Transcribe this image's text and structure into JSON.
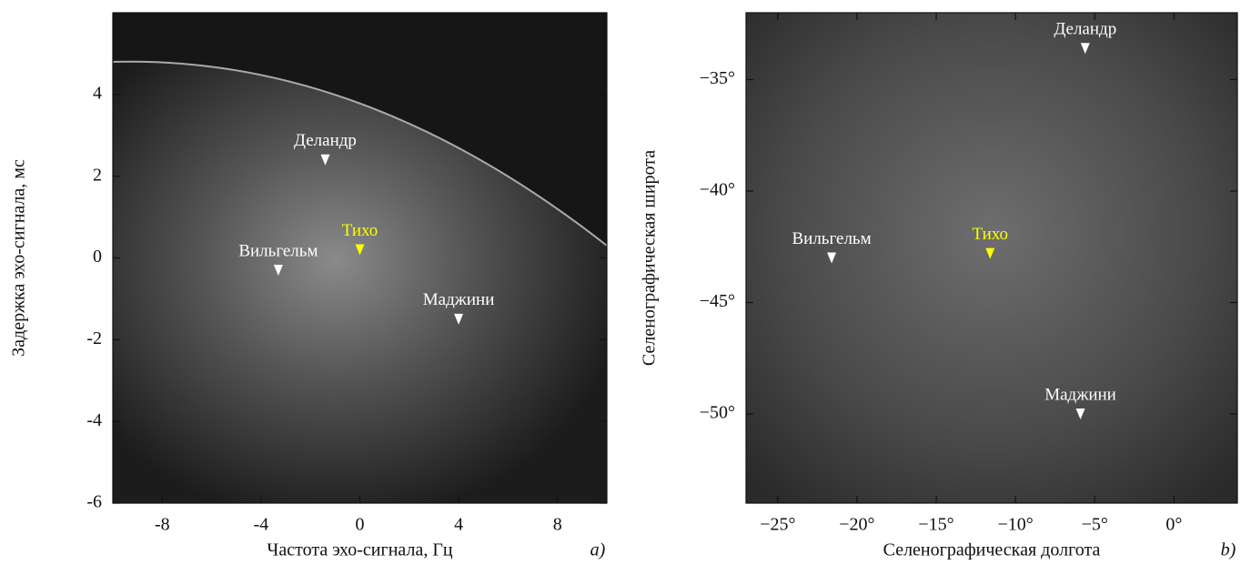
{
  "chart_data": [
    {
      "type": "image",
      "xlabel": "Частота эхо-сигнала, Гц",
      "ylabel": "Задержка эхо-сигнала, мс",
      "panel_label": "a)",
      "xlim": [
        -10,
        10
      ],
      "ylim": [
        -6,
        6
      ],
      "xticks": [
        -8,
        -4,
        0,
        4,
        8
      ],
      "yticks": [
        -6,
        -4,
        -2,
        0,
        2,
        4
      ],
      "annotations": [
        {
          "text": "Деландр",
          "x": -1.4,
          "y": 2.4,
          "color": "#ffffff"
        },
        {
          "text": "Тихо",
          "x": 0,
          "y": 0.2,
          "color": "#ffff00"
        },
        {
          "text": "Вильгельм",
          "x": -3.3,
          "y": -0.3,
          "color": "#ffffff"
        },
        {
          "text": "Маджини",
          "x": 4,
          "y": -1.5,
          "color": "#ffffff"
        }
      ]
    },
    {
      "type": "image",
      "xlabel": "Селенографическая долгота",
      "ylabel": "Селенографическая широта",
      "panel_label": "b)",
      "xlim": [
        -27,
        4
      ],
      "ylim": [
        -54,
        -32
      ],
      "xticks": [
        {
          "value": -25,
          "label": "−25°"
        },
        {
          "value": -20,
          "label": "−20°"
        },
        {
          "value": -15,
          "label": "−15°"
        },
        {
          "value": -10,
          "label": "−10°"
        },
        {
          "value": -5,
          "label": "−5°"
        },
        {
          "value": 0,
          "label": "0°"
        }
      ],
      "yticks": [
        {
          "value": -50,
          "label": "−50°"
        },
        {
          "value": -45,
          "label": "−45°"
        },
        {
          "value": -40,
          "label": "−40°"
        },
        {
          "value": -35,
          "label": "−35°"
        }
      ],
      "annotations": [
        {
          "text": "Деландр",
          "x": -5.6,
          "y": -33.6,
          "color": "#ffffff"
        },
        {
          "text": "Тихо",
          "x": -11.6,
          "y": -42.8,
          "color": "#ffff00"
        },
        {
          "text": "Вильгельм",
          "x": -21.6,
          "y": -43.0,
          "color": "#ffffff"
        },
        {
          "text": "Маджини",
          "x": -5.9,
          "y": -50.0,
          "color": "#ffffff"
        }
      ]
    }
  ]
}
